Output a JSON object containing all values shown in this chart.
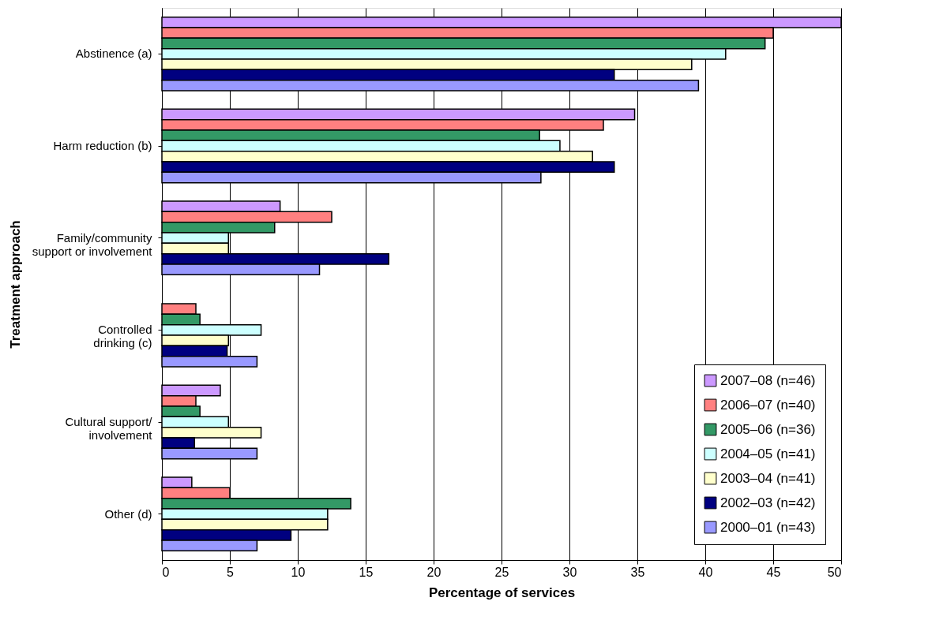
{
  "chart_data": {
    "type": "bar",
    "orientation": "horizontal",
    "xlabel": "Percentage of services",
    "ylabel": "Treatment approach",
    "categories": [
      "Abstinence (a)",
      "Harm reduction (b)",
      "Family/community\nsupport or involvement",
      "Controlled\ndrinking (c)",
      "Cultural support/\ninvolvement",
      "Other (d)"
    ],
    "series": [
      {
        "name": "2007–08 (n=46)",
        "color": "#cc99ff",
        "values": [
          50,
          34.8,
          8.7,
          null,
          4.3,
          2.2
        ]
      },
      {
        "name": "2006–07 (n=40)",
        "color": "#ff8080",
        "values": [
          45,
          32.5,
          12.5,
          2.5,
          2.5,
          5.0
        ]
      },
      {
        "name": "2005–06 (n=36)",
        "color": "#339966",
        "values": [
          44.4,
          27.8,
          8.3,
          2.8,
          2.8,
          13.9
        ]
      },
      {
        "name": "2004–05 (n=41)",
        "color": "#ccffff",
        "values": [
          41.5,
          29.3,
          4.9,
          7.3,
          4.9,
          12.2
        ]
      },
      {
        "name": "2003–04 (n=41)",
        "color": "#ffffcc",
        "values": [
          39.0,
          31.7,
          4.9,
          4.9,
          7.3,
          12.2
        ]
      },
      {
        "name": "2002–03 (n=42)",
        "color": "#000080",
        "values": [
          33.3,
          33.3,
          16.7,
          4.8,
          2.4,
          9.5
        ]
      },
      {
        "name": "2000–01 (n=43)",
        "color": "#9999ff",
        "values": [
          39.5,
          27.9,
          11.6,
          7.0,
          7.0,
          7.0
        ]
      }
    ],
    "xlim": [
      0,
      50
    ],
    "xticks": [
      0,
      5,
      10,
      15,
      20,
      25,
      30,
      35,
      40,
      45,
      50
    ],
    "grid": "x",
    "legend": "bottom right"
  }
}
